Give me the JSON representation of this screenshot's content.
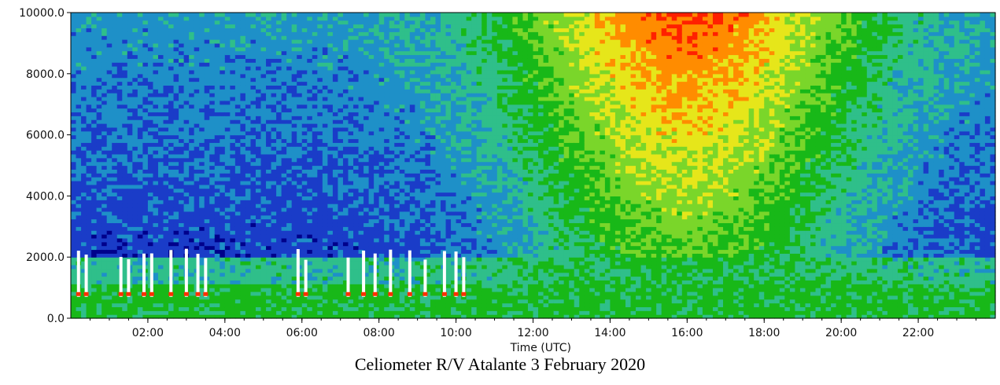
{
  "chart_data": {
    "type": "heatmap",
    "title": "",
    "xlabel": "Time (UTC)",
    "ylabel": "",
    "x_range_hours": [
      0,
      24
    ],
    "ylim": [
      0,
      10000
    ],
    "x_ticks": [
      "02:00",
      "04:00",
      "06:00",
      "08:00",
      "10:00",
      "12:00",
      "14:00",
      "16:00",
      "18:00",
      "20:00",
      "22:00"
    ],
    "x_tick_hours": [
      2,
      4,
      6,
      8,
      10,
      12,
      14,
      16,
      18,
      20,
      22
    ],
    "y_ticks": [
      "0.0",
      "2000.0",
      "4000.0",
      "6000.0",
      "8000.0",
      "10000.0"
    ],
    "y_tick_values": [
      0,
      2000,
      4000,
      6000,
      8000,
      10000
    ],
    "colormap": [
      "#00008b",
      "#1a3cc8",
      "#1e90c8",
      "#2fbf8a",
      "#18b818",
      "#7ad62a",
      "#e6e61a",
      "#ff8c00",
      "#ff2000",
      "#ffffff"
    ],
    "grid": false,
    "cloud_base_events_hours": [
      0.2,
      0.4,
      1.3,
      1.5,
      1.9,
      2.1,
      2.6,
      3.0,
      3.3,
      3.5,
      5.9,
      6.1,
      7.2,
      7.6,
      7.9,
      8.3,
      8.8,
      9.2,
      9.7,
      10.0,
      10.2
    ]
  },
  "caption": "Celiometer R/V Atalante 3 February 2020"
}
